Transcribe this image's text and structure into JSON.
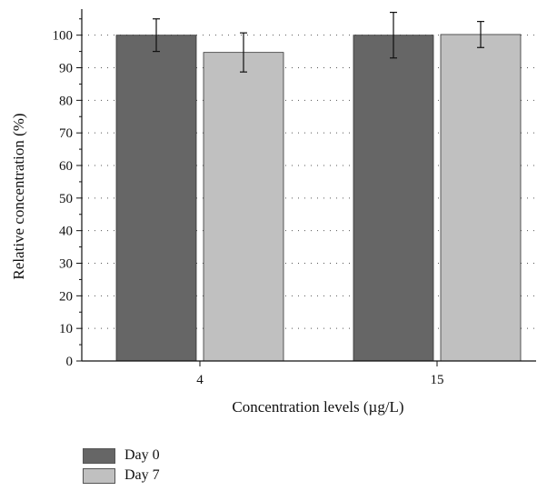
{
  "chart_data": {
    "type": "bar",
    "categories": [
      "4",
      "15"
    ],
    "series": [
      {
        "name": "Day 0",
        "values": [
          100,
          100
        ],
        "errors": [
          5,
          7
        ],
        "color": "#666666"
      },
      {
        "name": "Day 7",
        "values": [
          94.7,
          100.2
        ],
        "errors": [
          6,
          4
        ],
        "color": "#c0c0c0"
      }
    ],
    "xlabel": "Concentration levels (µg/L)",
    "ylabel": "Relative concentration (%)",
    "ylim": [
      0,
      108
    ],
    "yticks": [
      0,
      10,
      20,
      30,
      40,
      50,
      60,
      70,
      80,
      90,
      100
    ],
    "grid": "horizontal dotted",
    "legend_position": "bottom-left",
    "error_bars": true
  }
}
